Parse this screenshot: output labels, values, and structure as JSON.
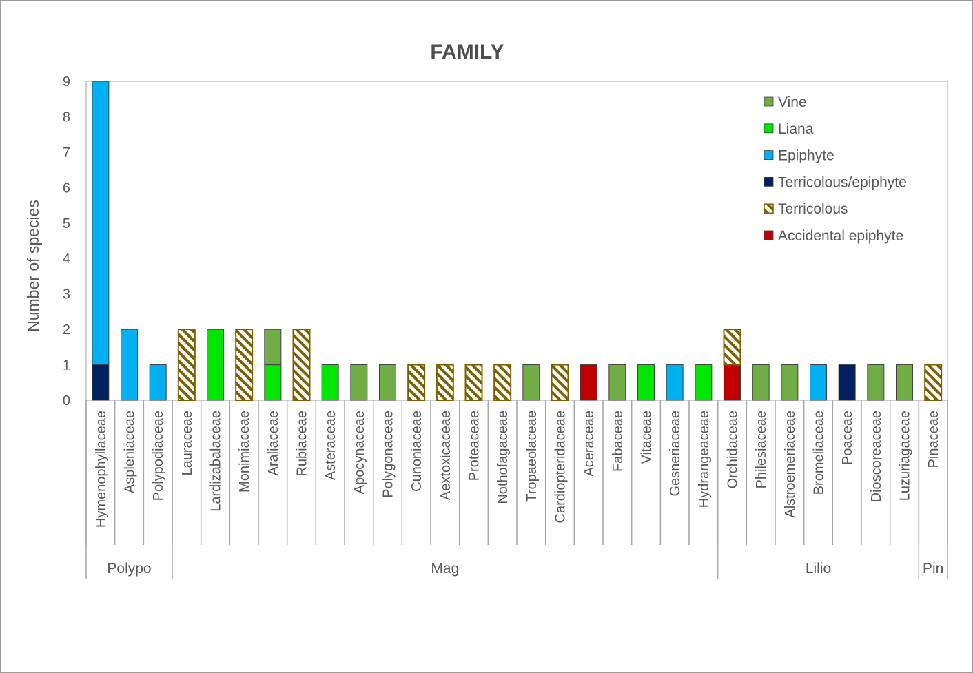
{
  "chart_data": {
    "type": "bar",
    "stacked": true,
    "title": "FAMILY",
    "xlabel": "",
    "ylabel": "Number of species",
    "ylim": [
      0,
      9
    ],
    "yticks": [
      0,
      1,
      2,
      3,
      4,
      5,
      6,
      7,
      8,
      9
    ],
    "grid": false,
    "legend_position": "top-right",
    "categories": [
      "Hymenophyllaceae",
      "Aspleniaceae",
      "Polypodiaceae",
      "Lauraceae",
      "Lardizabalaceae",
      "Monimiaceae",
      "Araliaceae",
      "Rubiaceae",
      "Asteraceae",
      "Apocynaceae",
      "Polygonaceae",
      "Cunoniaceae",
      "Aextoxicaceae",
      "Proteaceae",
      "Nothofagaceae",
      "Tropaeolaceae",
      "Cardiopteridaceae",
      "Aceraceae",
      "Fabaceae",
      "Vitaceae",
      "Gesneriaceae",
      "Hydrangeaceae",
      "Orchidaceae",
      "Philesiaceae",
      "Alstroemeriaceae",
      "Bromeliaceae",
      "Poaceae",
      "Dioscoreaceae",
      "Luzuriagaceae",
      "Pinaceae"
    ],
    "groups": [
      {
        "label": "Polypo",
        "start": 0,
        "end": 2
      },
      {
        "label": "Mag",
        "start": 3,
        "end": 21
      },
      {
        "label": "Lilio",
        "start": 22,
        "end": 28
      },
      {
        "label": "Pin",
        "start": 29,
        "end": 29
      }
    ],
    "series": [
      {
        "name": "Vine",
        "color": "#70ad47",
        "pattern": "solid",
        "values": [
          0,
          0,
          0,
          0,
          0,
          0,
          1,
          0,
          0,
          1,
          1,
          0,
          0,
          0,
          0,
          1,
          0,
          0,
          1,
          0,
          0,
          0,
          0,
          1,
          1,
          0,
          0,
          1,
          1,
          0
        ]
      },
      {
        "name": "Liana",
        "color": "#00e600",
        "pattern": "solid",
        "values": [
          0,
          0,
          0,
          0,
          2,
          0,
          1,
          0,
          1,
          0,
          0,
          0,
          0,
          0,
          0,
          0,
          0,
          0,
          0,
          1,
          0,
          1,
          0,
          0,
          0,
          0,
          0,
          0,
          0,
          0
        ]
      },
      {
        "name": "Epiphyte",
        "color": "#00b0f0",
        "pattern": "solid",
        "values": [
          8,
          2,
          1,
          0,
          0,
          0,
          0,
          0,
          0,
          0,
          0,
          0,
          0,
          0,
          0,
          0,
          0,
          0,
          0,
          0,
          1,
          0,
          0,
          0,
          0,
          1,
          0,
          0,
          0,
          0
        ]
      },
      {
        "name": "Terricolous/epiphyte",
        "color": "#002060",
        "pattern": "solid",
        "values": [
          1,
          0,
          0,
          0,
          0,
          0,
          0,
          0,
          0,
          0,
          0,
          0,
          0,
          0,
          0,
          0,
          0,
          0,
          0,
          0,
          0,
          0,
          0,
          0,
          0,
          0,
          1,
          0,
          0,
          0
        ]
      },
      {
        "name": "Terricolous",
        "color": "#7f6000",
        "pattern": "hatch",
        "values": [
          0,
          0,
          0,
          2,
          0,
          2,
          0,
          2,
          0,
          0,
          0,
          1,
          1,
          1,
          1,
          0,
          1,
          0,
          0,
          0,
          0,
          0,
          1,
          0,
          0,
          0,
          0,
          0,
          0,
          1
        ]
      },
      {
        "name": "Accidental epiphyte",
        "color": "#c00000",
        "pattern": "solid",
        "values": [
          0,
          0,
          0,
          0,
          0,
          0,
          0,
          0,
          0,
          0,
          0,
          0,
          0,
          0,
          0,
          0,
          0,
          1,
          0,
          0,
          0,
          0,
          1,
          0,
          0,
          0,
          0,
          0,
          0,
          0
        ]
      }
    ],
    "stack_order": [
      "Terricolous/epiphyte",
      "Accidental epiphyte",
      "Liana",
      "Epiphyte",
      "Vine",
      "Terricolous"
    ]
  }
}
